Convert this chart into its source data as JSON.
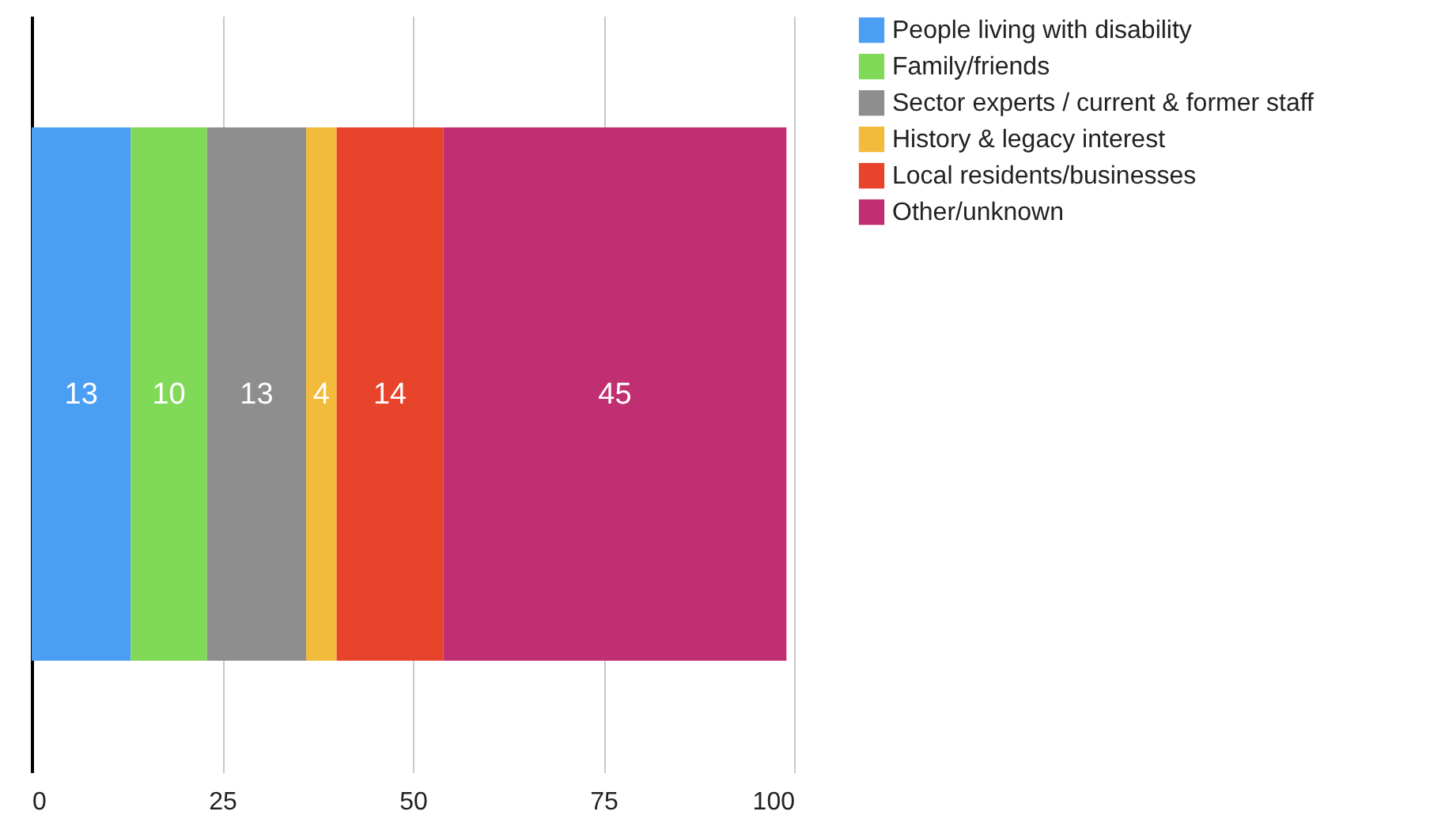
{
  "chart_data": {
    "type": "bar",
    "orientation": "horizontal",
    "stacked": true,
    "categories": [
      null
    ],
    "series": [
      {
        "name": "People living with disability",
        "color": "#4a9ff5",
        "values": [
          13
        ]
      },
      {
        "name": "Family/friends",
        "color": "#80d957",
        "values": [
          10
        ]
      },
      {
        "name": "Sector experts / current & former staff",
        "color": "#8e8e8e",
        "values": [
          13
        ]
      },
      {
        "name": "History & legacy interest",
        "color": "#f3bb3c",
        "values": [
          4
        ]
      },
      {
        "name": "Local residents/businesses",
        "color": "#e8432b",
        "values": [
          14
        ]
      },
      {
        "name": "Other/unknown",
        "color": "#c12f73",
        "values": [
          45
        ]
      }
    ],
    "xlim": [
      0,
      100
    ],
    "xticks": [
      0,
      25,
      50,
      75,
      100
    ],
    "grid": "x",
    "legend": "right",
    "data_labels": true
  }
}
